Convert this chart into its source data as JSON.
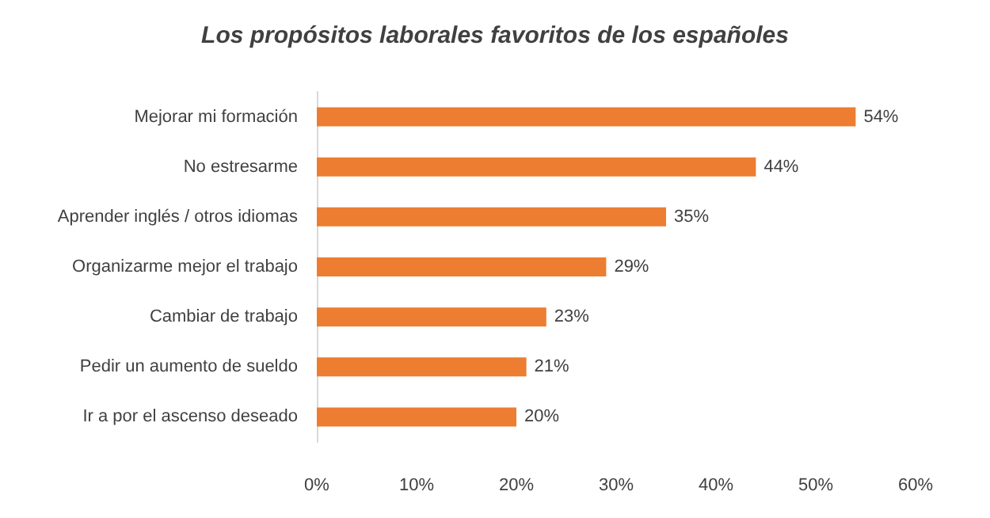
{
  "chart_data": {
    "type": "bar",
    "orientation": "horizontal",
    "title": "Los propósitos laborales favoritos de los españoles",
    "categories": [
      "Mejorar mi formación",
      "No estresarme",
      "Aprender inglés / otros idiomas",
      "Organizarme mejor el trabajo",
      "Cambiar de trabajo",
      "Pedir un aumento de sueldo",
      "Ir a por el ascenso deseado"
    ],
    "values": [
      54,
      44,
      35,
      29,
      23,
      21,
      20
    ],
    "value_labels": [
      "54%",
      "44%",
      "35%",
      "29%",
      "23%",
      "21%",
      "20%"
    ],
    "color": "#ed7d31",
    "xlim": [
      0,
      60
    ],
    "xticks": [
      {
        "value": 0,
        "label": "0%"
      },
      {
        "value": 10,
        "label": "10%"
      },
      {
        "value": 20,
        "label": "20%"
      },
      {
        "value": 30,
        "label": "30%"
      },
      {
        "value": 40,
        "label": "40%"
      },
      {
        "value": 50,
        "label": "50%"
      },
      {
        "value": 60,
        "label": "60%"
      }
    ],
    "grid": false
  }
}
